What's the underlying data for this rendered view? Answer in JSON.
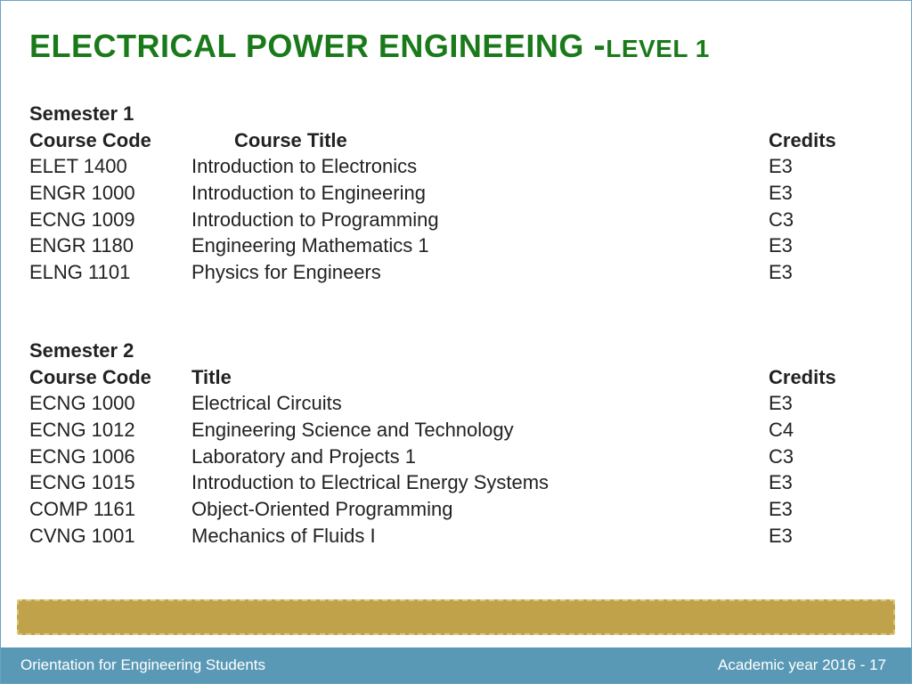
{
  "colors": {
    "title": "#1a7a1a",
    "text": "#222222",
    "border": "#6ba3c4",
    "gold_bar": "#bfa24a",
    "gold_bar_border": "#d9c87a",
    "footer_bg": "#5a99b5",
    "footer_text": "#ffffff",
    "background": "#ffffff"
  },
  "typography": {
    "title_main_size": 36,
    "title_level_size": 28,
    "body_size": 22,
    "footer_size": 17,
    "font_family": "Verdana"
  },
  "title": {
    "main": "ELECTRICAL POWER ENGINEEING ",
    "dash": "-",
    "level": "LEVEL 1"
  },
  "semester1": {
    "label": "Semester 1",
    "headers": {
      "code": "Course Code",
      "title": "Course Title",
      "credits": "Credits"
    },
    "rows": [
      {
        "code": "ELET 1400",
        "title": "Introduction to Electronics",
        "credits": "E3"
      },
      {
        "code": "ENGR 1000",
        "title": "Introduction to Engineering",
        "credits": "E3"
      },
      {
        "code": "ECNG 1009",
        "title": "Introduction to Programming",
        "credits": "C3"
      },
      {
        "code": "ENGR 1180",
        "title": "Engineering Mathematics 1",
        "credits": "E3"
      },
      {
        "code": "ELNG 1101",
        "title": "Physics for Engineers",
        "credits": "E3"
      }
    ]
  },
  "semester2": {
    "label": "Semester 2",
    "headers": {
      "code": "Course Code",
      "title": "Title",
      "credits": "Credits"
    },
    "rows": [
      {
        "code": "ECNG 1000",
        "title": "Electrical Circuits",
        "credits": "E3"
      },
      {
        "code": "ECNG 1012",
        "title": "Engineering Science and Technology",
        "credits": "C4"
      },
      {
        "code": "ECNG 1006",
        "title": "Laboratory and Projects 1",
        "credits": "C3"
      },
      {
        "code": "ECNG 1015",
        "title": "Introduction to Electrical Energy Systems",
        "credits": "E3"
      },
      {
        "code": "COMP 1161",
        "title": "Object-Oriented Programming",
        "credits": "E3"
      },
      {
        "code": "CVNG 1001",
        "title": "Mechanics of Fluids I",
        "credits": "E3"
      }
    ]
  },
  "footer": {
    "left": "Orientation for Engineering Students",
    "right": "Academic year 2016 - 17"
  }
}
